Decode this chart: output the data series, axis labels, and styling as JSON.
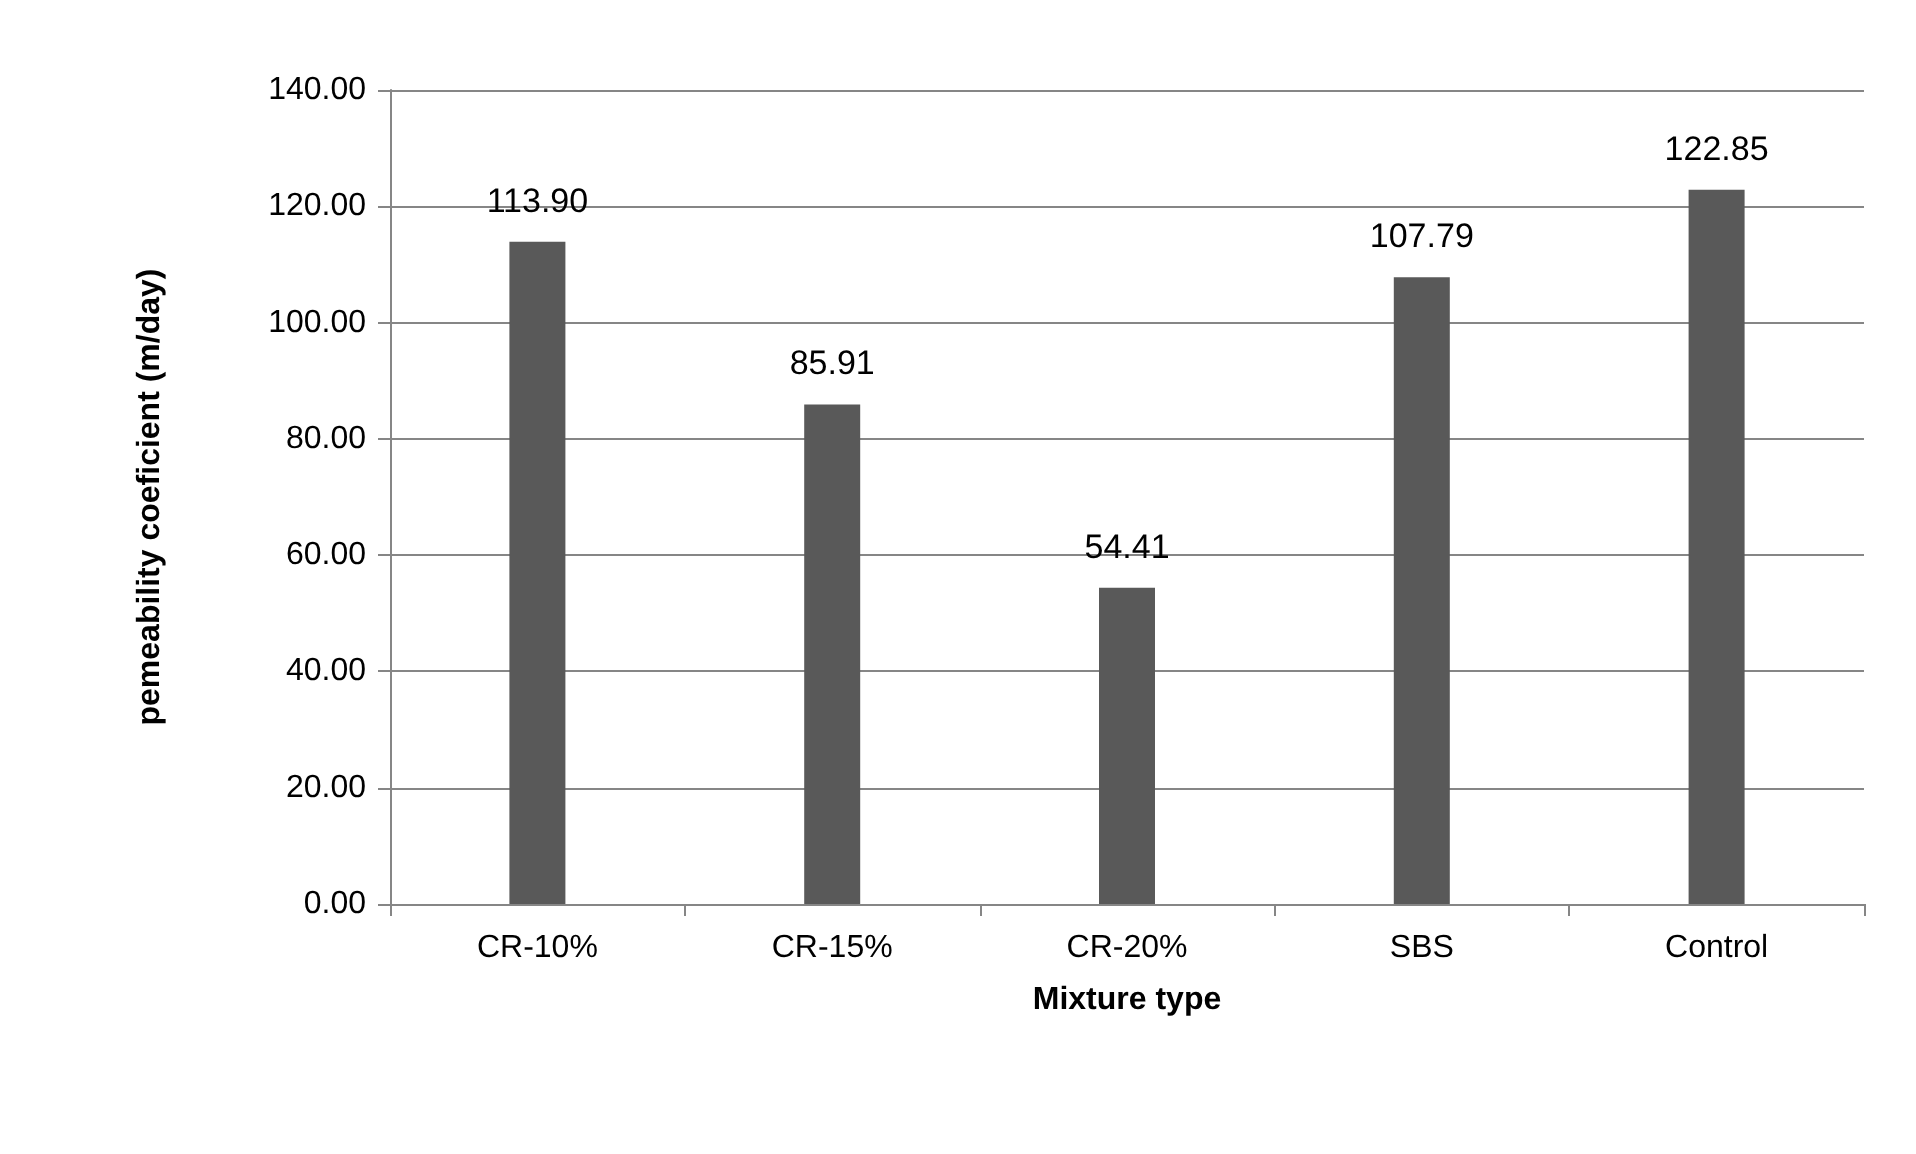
{
  "chart_data": {
    "type": "bar",
    "xlabel": "Mixture type",
    "ylabel": "pemeability coeficient (m/day)",
    "categories": [
      "CR-10%",
      "CR-15%",
      "CR-20%",
      "SBS",
      "Control"
    ],
    "values": [
      113.9,
      85.91,
      54.41,
      107.79,
      122.85
    ],
    "value_labels": [
      "113.90",
      "85.91",
      "54.41",
      "107.79",
      "122.85"
    ],
    "color": "#595959",
    "ylim": [
      0,
      140
    ],
    "yticks": [
      {
        "value": 0,
        "label": "0.00"
      },
      {
        "value": 20,
        "label": "20.00"
      },
      {
        "value": 40,
        "label": "40.00"
      },
      {
        "value": 60,
        "label": "60.00"
      },
      {
        "value": 80,
        "label": "80.00"
      },
      {
        "value": 100,
        "label": "100.00"
      },
      {
        "value": 120,
        "label": "120.00"
      },
      {
        "value": 140,
        "label": "140.00"
      }
    ],
    "grid": "y"
  }
}
